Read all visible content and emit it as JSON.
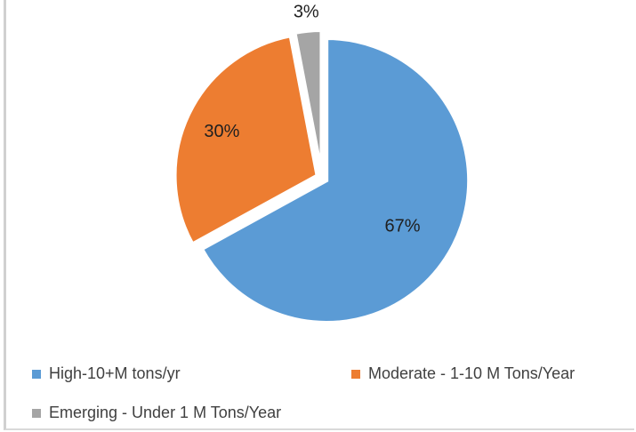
{
  "chart_data": {
    "type": "pie",
    "title": "",
    "categories": [
      "High-10+M tons/yr",
      "Moderate - 1-10 M Tons/Year",
      "Emerging - Under 1 M Tons/Year"
    ],
    "values": [
      67,
      30,
      3
    ],
    "data_labels": [
      "67%",
      "30%",
      "3%"
    ],
    "colors": [
      "#5b9bd5",
      "#ed7d31",
      "#a5a5a5"
    ],
    "exploded": true,
    "start_angle": "12 o'clock, clockwise",
    "legend": {
      "placement": "bottom",
      "items": [
        {
          "label": "High-10+M tons/yr",
          "color": "#5b9bd5"
        },
        {
          "label": "Moderate - 1-10 M Tons/Year",
          "color": "#ed7d31"
        },
        {
          "label": "Emerging - Under 1 M Tons/Year",
          "color": "#a5a5a5"
        }
      ]
    }
  }
}
